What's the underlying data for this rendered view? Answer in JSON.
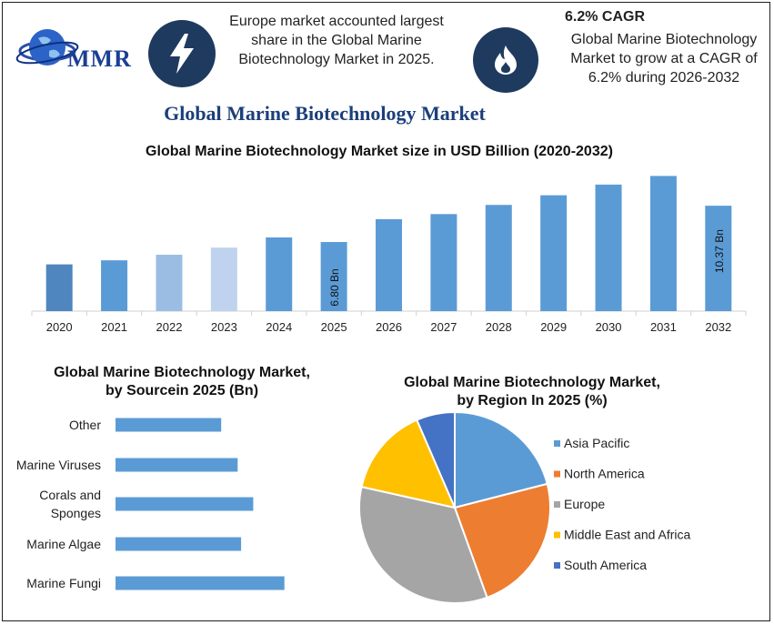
{
  "brand": {
    "logo_text": "MMR"
  },
  "highlights": {
    "europe": {
      "text": "Europe market accounted largest share in the Global Marine Biotechnology Market in 2025."
    },
    "cagr": {
      "title": "6.2% CAGR",
      "text": "Global Marine Biotechnology Market to grow at a CAGR of 6.2% during 2026-2032"
    }
  },
  "page_title": "Global Marine Biotechnology Market",
  "colors": {
    "bar_blue": "#5b9bd5",
    "title_navy": "#1c3f7a",
    "badge_navy": "#1f3a5f"
  },
  "icons": {
    "europe": "lightning-bolt-icon",
    "cagr": "flame-icon"
  },
  "chart_data": [
    {
      "type": "bar",
      "title": "Global Marine Biotechnology Market size in USD Billion (2020-2032)",
      "categories": [
        "2020",
        "2021",
        "2022",
        "2023",
        "2024",
        "2025",
        "2026",
        "2027",
        "2028",
        "2029",
        "2030",
        "2031",
        "2032"
      ],
      "values": [
        4.6,
        5.0,
        5.55,
        6.25,
        7.25,
        6.8,
        9.05,
        9.55,
        10.45,
        11.4,
        12.45,
        13.3,
        10.37
      ],
      "bar_colors": [
        "#4f86c0",
        "#5b9bd5",
        "#9cbde3",
        "#bfd3ee",
        "#5b9bd5",
        "#5b9bd5",
        "#5b9bd5",
        "#5b9bd5",
        "#5b9bd5",
        "#5b9bd5",
        "#5b9bd5",
        "#5b9bd5",
        "#5b9bd5"
      ],
      "data_labels": [
        {
          "category": "2025",
          "text": "6.80 Bn"
        },
        {
          "category": "2032",
          "text": "10.37 Bn"
        }
      ],
      "ylim": [
        0,
        14.5
      ],
      "grid": false
    },
    {
      "type": "bar",
      "orientation": "horizontal",
      "title": "Global Marine Biotechnology Market, by Sourcein 2025 (Bn)",
      "title_lines": [
        "Global Marine Biotechnology Market,",
        "by Sourcein 2025 (Bn)"
      ],
      "categories": [
        "Other",
        "Marine Viruses",
        "Corals and Sponges",
        "Marine Algae",
        "Marine Fungi"
      ],
      "category_lines": [
        [
          "Other"
        ],
        [
          "Marine Viruses"
        ],
        [
          "Corals and",
          "Sponges"
        ],
        [
          "Marine Algae"
        ],
        [
          "Marine Fungi"
        ]
      ],
      "values": [
        1.22,
        1.41,
        1.59,
        1.45,
        1.95
      ],
      "xlim": [
        0,
        2.1
      ],
      "color": "#5b9bd5"
    },
    {
      "type": "pie",
      "title": "Global Marine Biotechnology Market, by Region In 2025 (%)",
      "title_lines": [
        "Global Marine Biotechnology Market,",
        "by Region In 2025 (%)"
      ],
      "labels": [
        "Asia Pacific",
        "North America",
        "Europe",
        "Middle East and Africa",
        "South America"
      ],
      "values": [
        21,
        23.5,
        34,
        15,
        6.5
      ],
      "colors": [
        "#5b9bd5",
        "#ed7d31",
        "#a5a5a5",
        "#ffc000",
        "#4472c4"
      ],
      "legend_position": "right"
    }
  ]
}
